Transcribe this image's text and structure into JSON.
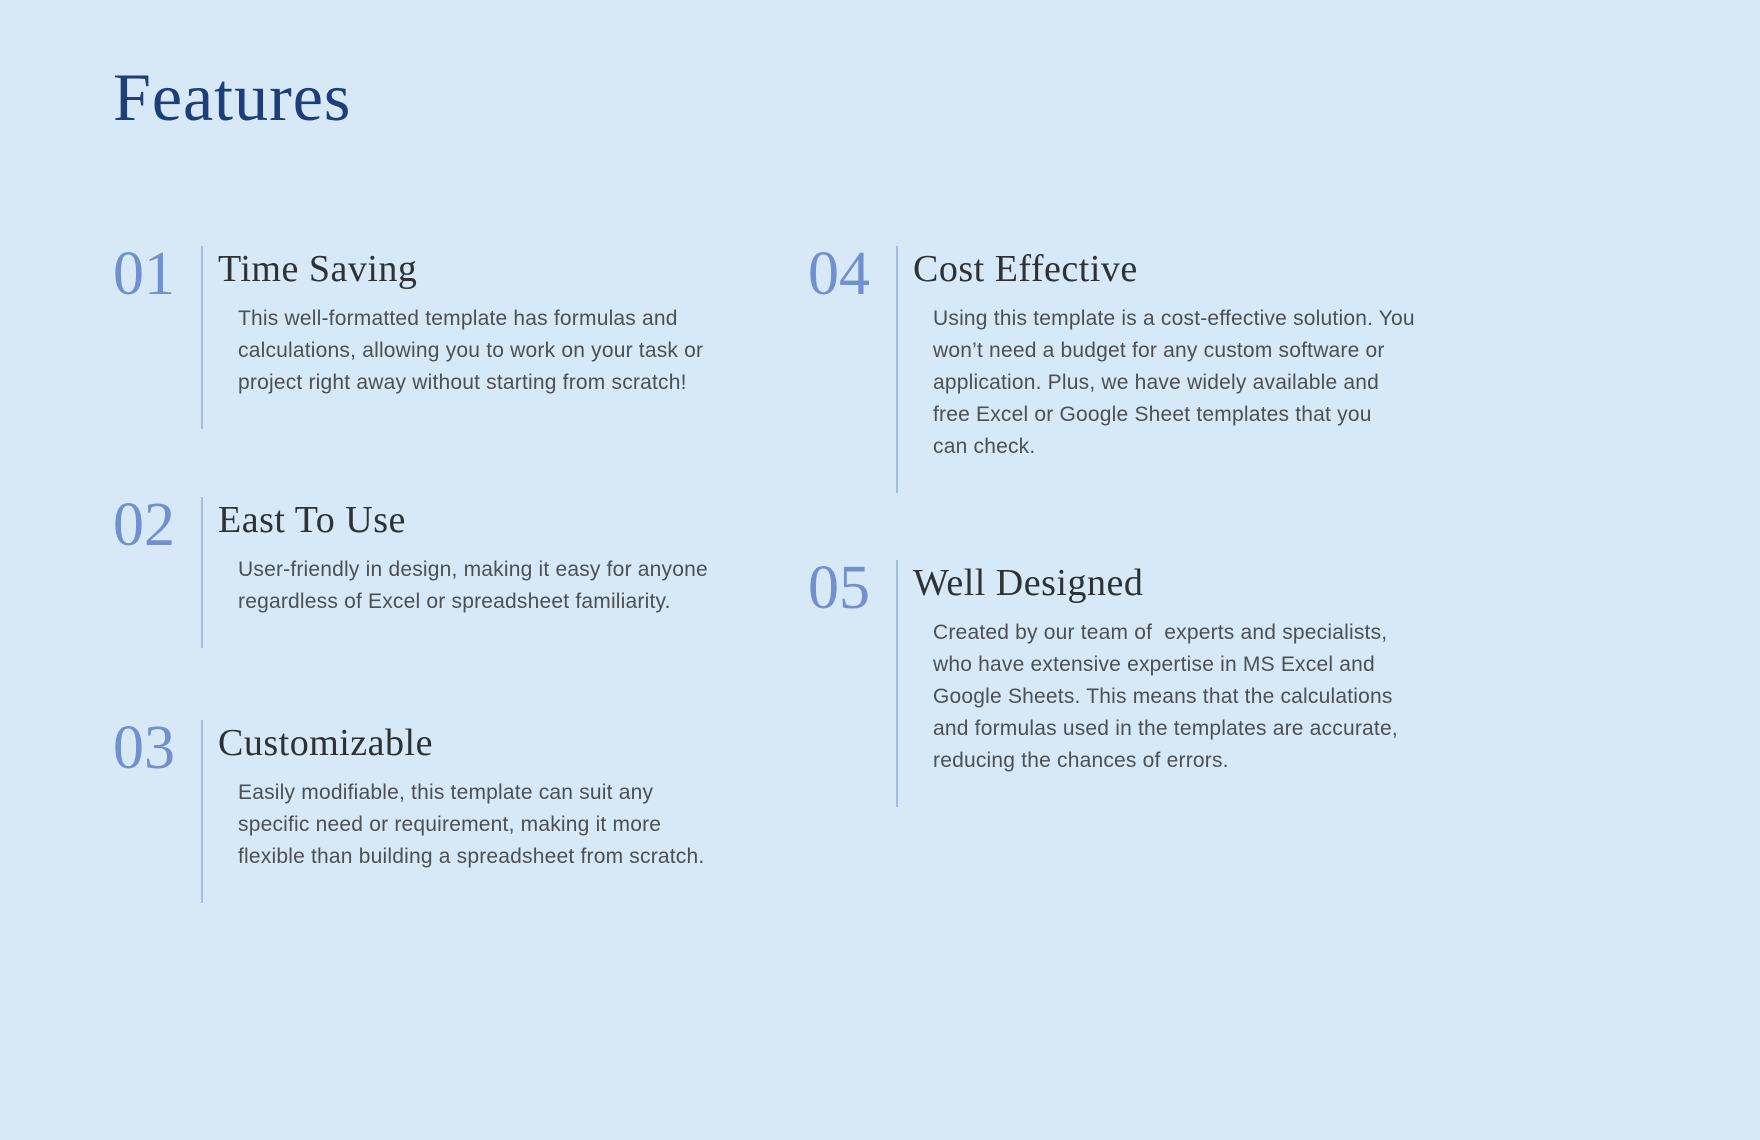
{
  "page": {
    "title": "Features"
  },
  "colors": {
    "bg": "#d7e9f7",
    "navy": "#1d3e77",
    "periwinkle": "#7290cd",
    "divider": "#a5bbdf",
    "title-dark": "#2d3237",
    "body-gray": "#4b5055"
  },
  "features": [
    {
      "number": "01",
      "title": "Time Saving",
      "description": "This well-formatted template has formulas and\ncalculations, allowing you to work on your task or\nproject right away without starting from scratch!"
    },
    {
      "number": "02",
      "title": "East To Use",
      "description": "User-friendly in design, making it easy for anyone\nregardless of Excel or spreadsheet familiarity."
    },
    {
      "number": "03",
      "title": "Customizable",
      "description": "Easily modifiable, this template can suit any\nspecific need or requirement, making it more\nflexible than building a spreadsheet from scratch."
    },
    {
      "number": "04",
      "title": "Cost Effective",
      "description": "Using this template is a cost-effective solution. You\nwon’t need a budget for any custom software or\napplication. Plus, we have widely available and\nfree Excel or Google Sheet templates that you\ncan check."
    },
    {
      "number": "05",
      "title": "Well Designed",
      "description": "Created by our team of  experts and specialists,\nwho have extensive expertise in MS Excel and\nGoogle Sheets. This means that the calculations\nand formulas used in the templates are accurate,\nreducing the chances of errors."
    }
  ]
}
